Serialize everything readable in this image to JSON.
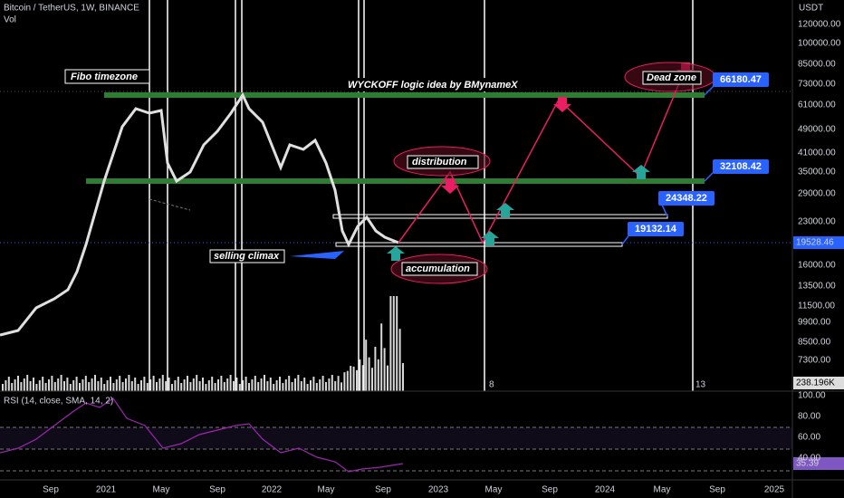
{
  "header": {
    "symbol": "Bitcoin / TetherUS, 1W, BINANCE",
    "volume_label": "Vol",
    "rsi_label": "RSI (14, close, SMA, 14, 2)"
  },
  "price_axis": {
    "unit": "USDT",
    "labels": [
      "120000.00",
      "100000.00",
      "85000.00",
      "73000.00",
      "61000.00",
      "49000.00",
      "41000.00",
      "35000.00",
      "29000.00",
      "23000.00",
      "16000.00",
      "13500.00",
      "11500.00",
      "9900.00",
      "8500.00",
      "7300.00"
    ],
    "last_price": "19528.46",
    "volume_value": "238.196K"
  },
  "rsi_axis": {
    "labels": [
      "100.00",
      "80.00",
      "60.00",
      "40.00"
    ],
    "last_value": "35.39"
  },
  "time_axis": {
    "labels": [
      "Sep",
      "2021",
      "May",
      "Sep",
      "2022",
      "May",
      "Sep",
      "2023",
      "May",
      "Sep",
      "2024",
      "May",
      "Sep",
      "2025"
    ]
  },
  "fibo_counts": [
    "8",
    "13"
  ],
  "annotations": {
    "fibo": "Fibo timezone",
    "title": "WYCKOFF logic idea by BMynameX",
    "dead_zone": "Dead zone",
    "distribution": "distribution",
    "accumulation": "accumulation",
    "selling_climax": "selling climax"
  },
  "price_tags": [
    "66180.47",
    "32108.42",
    "24348.22",
    "19132.14"
  ]
}
